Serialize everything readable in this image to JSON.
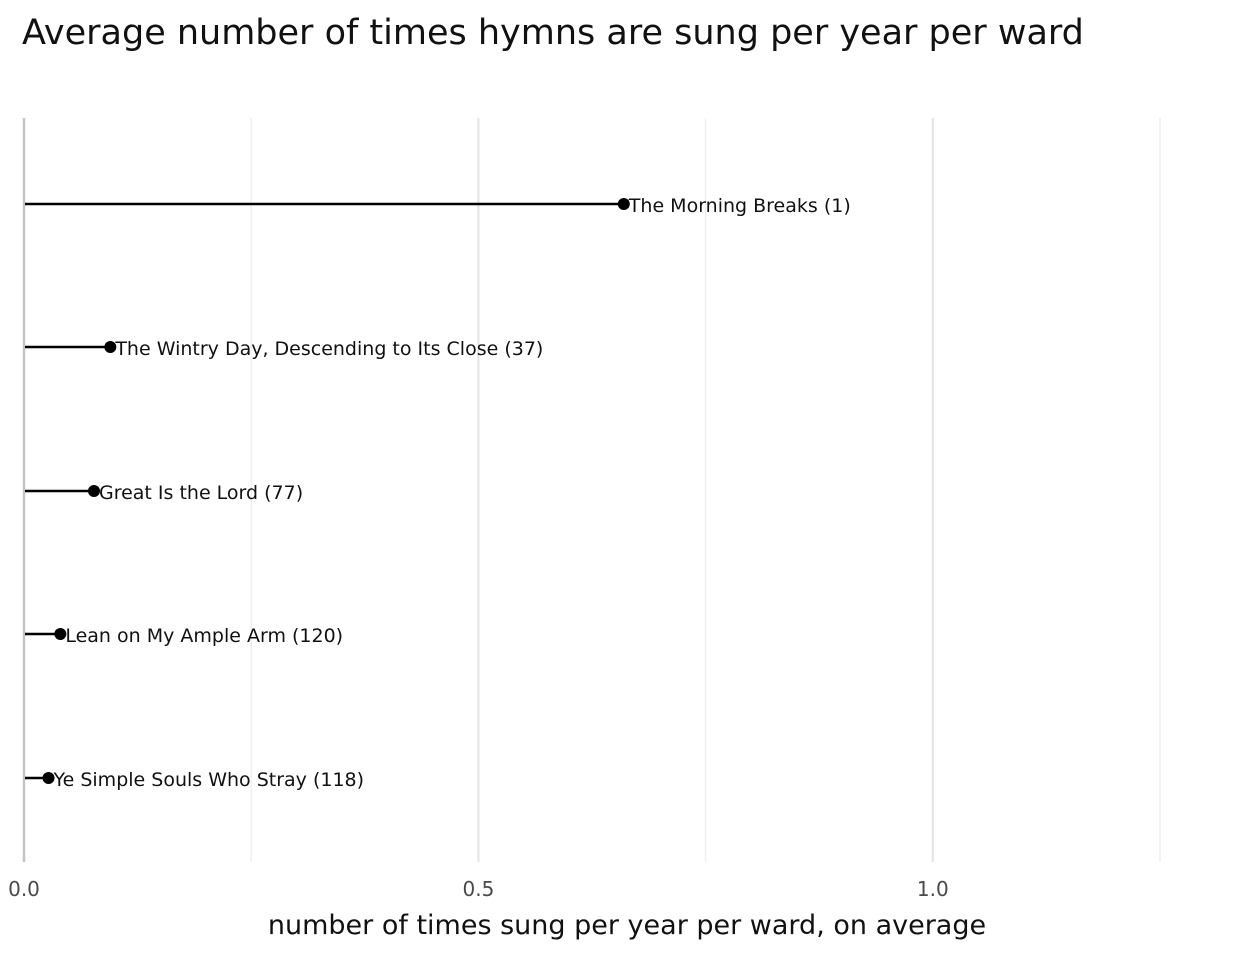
{
  "chart_data": {
    "type": "lollipop",
    "title": "Average number of times hymns are sung per year per ward",
    "xlabel": "number of times sung per year per ward, on average",
    "ylabel": "",
    "xlim": [
      0.0,
      1.25
    ],
    "x_ticks": [
      0.0,
      0.5,
      1.0
    ],
    "x_tick_labels": [
      "0.0",
      "0.5",
      "1.0"
    ],
    "x_minor_gridlines": [
      0.25,
      0.75,
      1.25
    ],
    "grid": "vertical",
    "legend": "none",
    "points": [
      {
        "label": "The Morning Breaks (1)",
        "value": 0.66
      },
      {
        "label": "The Wintry Day, Descending to Its Close (37)",
        "value": 0.095
      },
      {
        "label": "Great Is the Lord (77)",
        "value": 0.077
      },
      {
        "label": "Lean on My Ample Arm (120)",
        "value": 0.04
      },
      {
        "label": "Ye Simple Souls Who Stray (118)",
        "value": 0.027
      }
    ],
    "colors": {
      "point": "#000000",
      "grid": "#e3e3e3",
      "axis": "#c4c4c4"
    }
  }
}
